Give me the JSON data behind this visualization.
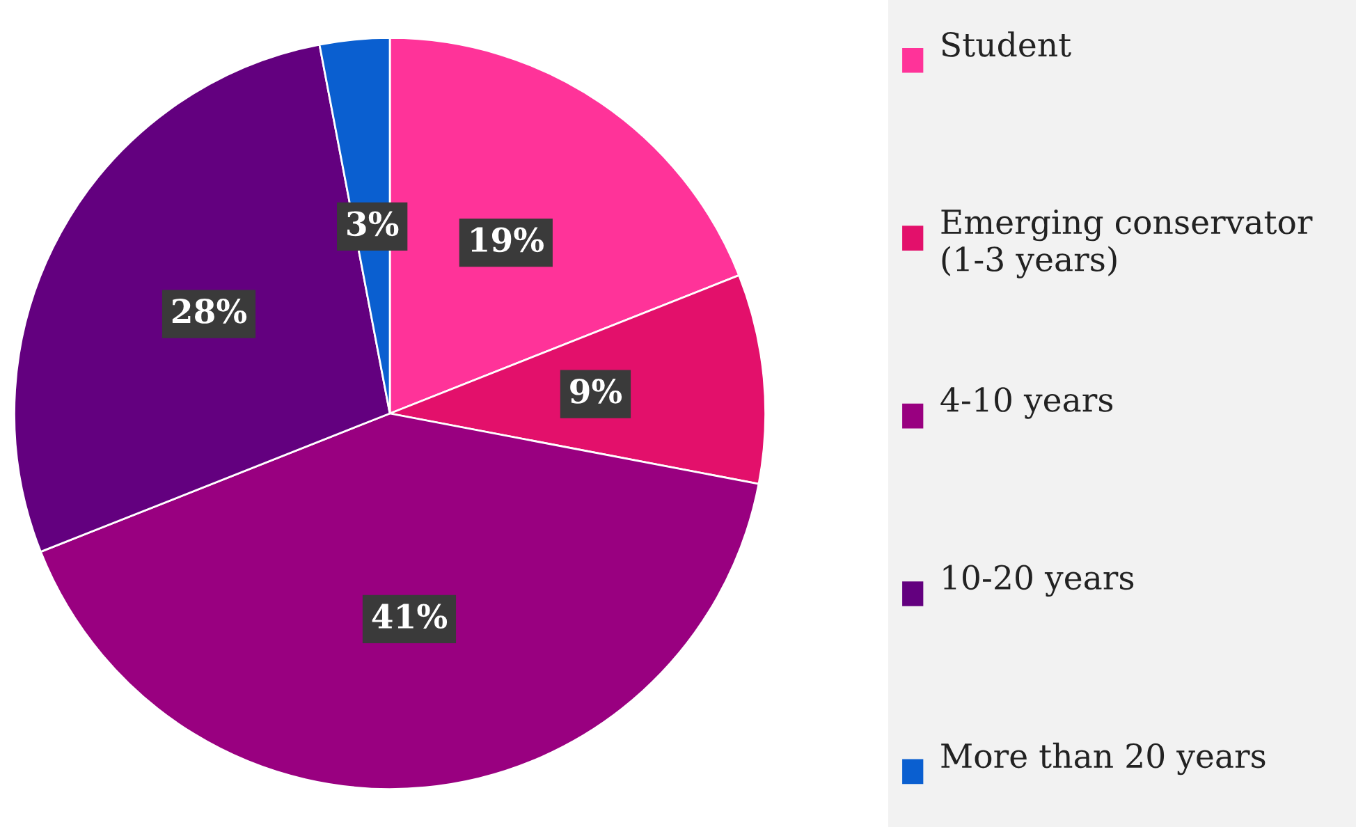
{
  "chart_data": {
    "type": "pie",
    "categories": [
      "Student",
      "Emerging conservator (1-3 years)",
      "4-10 years",
      "10-20 years",
      "More than 20 years"
    ],
    "values": [
      19,
      9,
      41,
      28,
      3
    ],
    "colors": [
      "#ff3399",
      "#e3106b",
      "#990080",
      "#63007f",
      "#0a5fd0"
    ],
    "value_labels": [
      "19%",
      "9%",
      "41%",
      "28%",
      "3%"
    ],
    "legend": "right"
  }
}
